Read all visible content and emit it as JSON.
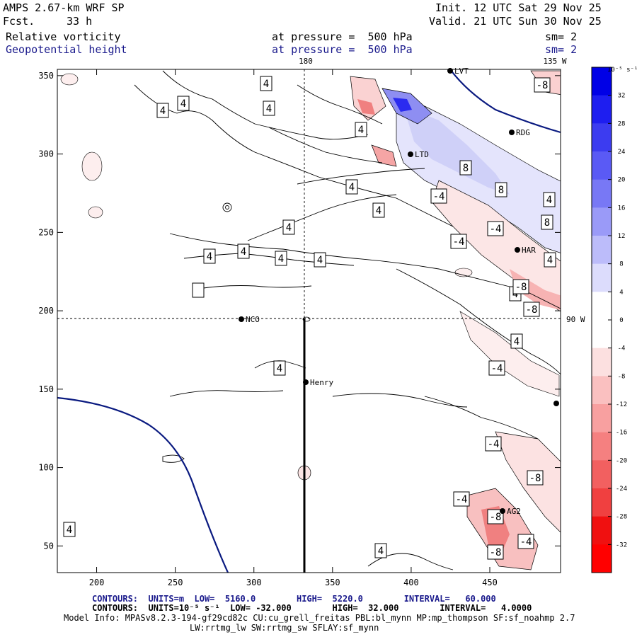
{
  "header": {
    "model": "AMPS 2.67-km WRF SP",
    "fcst_label": "Fcst.",
    "fcst_value": "33 h",
    "init": "Init. 12 UTC Sat 29 Nov 25",
    "valid": "Valid. 21 UTC Sun 30 Nov 25",
    "field1_name": "Relative vorticity",
    "field1_level": "at pressure =  500 hPa",
    "field1_sm": "sm= 2",
    "field2_name": "Geopotential height",
    "field2_level": "at pressure =  500 hPa",
    "field2_sm": "sm= 2"
  },
  "map_labels": {
    "lon_180": "180",
    "lon_135w": "135 W",
    "lon_90w": "90 W"
  },
  "stations": [
    {
      "name": "NCO"
    },
    {
      "name": "Henry"
    },
    {
      "name": "RDG"
    },
    {
      "name": "LTD"
    },
    {
      "name": "HAR"
    },
    {
      "name": "AG2"
    },
    {
      "name": "LVT"
    }
  ],
  "contour_labels": [
    "4",
    "4",
    "4",
    "4",
    "4",
    "4",
    "4",
    "4",
    "4",
    "4",
    "4",
    "4",
    "4",
    "4",
    "4",
    "4",
    "4",
    "4",
    "4",
    "8",
    "8",
    "8",
    "-4",
    "-4",
    "-4",
    "-4",
    "-4",
    "-4",
    "-4",
    "-8",
    "-8",
    "-8",
    "-8",
    "-8",
    "-8"
  ],
  "chart_data": {
    "type": "heatmap",
    "x": {
      "ticks": [
        200,
        250,
        300,
        350,
        400,
        450
      ],
      "range": [
        175,
        495
      ]
    },
    "y": {
      "ticks": [
        50,
        100,
        150,
        200,
        250,
        300,
        350
      ],
      "range": [
        33,
        354
      ]
    },
    "colorbar": {
      "unit_label": "10⁻⁵ s⁻¹",
      "ticks": [
        32,
        28,
        24,
        20,
        16,
        12,
        8,
        4,
        0,
        -4,
        -8,
        -12,
        -16,
        -20,
        -24,
        -28,
        -32
      ],
      "colors": [
        "#0000e6",
        "#1e1ef0",
        "#3c3cf0",
        "#5a5af5",
        "#7878f5",
        "#9a9af8",
        "#bcbcfa",
        "#dcdcfc",
        "#ffffff",
        "#ffffff",
        "#fce0e0",
        "#fac0c0",
        "#f8a0a0",
        "#f58080",
        "#f26060",
        "#f04040",
        "#f01010",
        "#ff0000"
      ]
    },
    "geopotential_height_contours": {
      "values": [
        5160,
        5220
      ]
    },
    "cross_section_line": {
      "x": 334,
      "y_from": 33,
      "y_to": 196
    }
  },
  "footer": {
    "line1": "CONTOURS:  UNITS=m  LOW=  5160.0        HIGH=  5220.0        INTERVAL=   60.000",
    "line2": "CONTOURS:  UNITS=10⁻⁵ s⁻¹  LOW= -32.000        HIGH=  32.000        INTERVAL=   4.0000",
    "line3": "Model Info: MPASv8.2.3-194-gf29cd82c CU:cu_grell_freitas PBL:bl_mynn MP:mp_thompson SF:sf_noahmp 2.7",
    "line4": "LW:rrtmg_lw SW:rrtmg_sw SFLAY:sf_mynn"
  }
}
